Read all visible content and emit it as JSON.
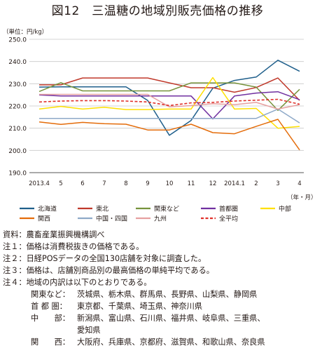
{
  "title": "図12　三温糖の地域別販売価格の推移",
  "chart_data": {
    "type": "line",
    "unit_label": "（単位：円/kg）",
    "xunit_label": "（年・月）",
    "categories": [
      "2013.4",
      "5",
      "6",
      "7",
      "8",
      "9",
      "10",
      "11",
      "12",
      "2014.1",
      "2",
      "3",
      "4"
    ],
    "y_ticks": [
      "190.0",
      "200.0",
      "210.0",
      "220.0",
      "230.0",
      "240.0",
      "250.0"
    ],
    "ylim": [
      190,
      250
    ],
    "grid": true,
    "legend_position": "bottom",
    "series": [
      {
        "name": "北海道",
        "color": "#1f5f8b",
        "dash": false,
        "values": [
          228.5,
          228.6,
          228.6,
          228.6,
          228.6,
          222.5,
          206.8,
          213.5,
          228.0,
          231.5,
          233.0,
          240.6,
          235.6
        ]
      },
      {
        "name": "東北",
        "color": "#c0392b",
        "dash": false,
        "values": [
          229.5,
          229.5,
          232.6,
          232.6,
          232.6,
          232.6,
          230.4,
          228.2,
          228.2,
          226.2,
          228.3,
          232.6,
          222.5
        ]
      },
      {
        "name": "関東など",
        "color": "#77933c",
        "dash": false,
        "values": [
          226.5,
          230.5,
          226.8,
          226.8,
          226.8,
          226.8,
          226.8,
          230.4,
          230.4,
          230.4,
          228.5,
          218.0,
          227.5
        ]
      },
      {
        "name": "首都圏",
        "color": "#7030a0",
        "dash": false,
        "values": [
          225.0,
          224.5,
          224.5,
          224.5,
          224.5,
          224.5,
          224.5,
          224.5,
          214.2,
          224.5,
          225.8,
          226.4,
          222.8
        ]
      },
      {
        "name": "中部",
        "color": "#ffe000",
        "dash": false,
        "values": [
          218.6,
          219.8,
          218.6,
          219.4,
          218.4,
          218.4,
          218.6,
          218.6,
          232.8,
          218.6,
          218.9,
          210.0,
          210.8
        ]
      },
      {
        "name": "関西",
        "color": "#e46c0a",
        "dash": false,
        "values": [
          212.8,
          211.7,
          212.6,
          212.0,
          211.8,
          209.2,
          209.2,
          211.8,
          208.0,
          207.5,
          210.8,
          214.0,
          200.2
        ]
      },
      {
        "name": "中国・四国",
        "color": "#8ea9c8",
        "dash": false,
        "values": [
          214.4,
          214.4,
          214.4,
          214.4,
          214.4,
          214.4,
          214.4,
          214.4,
          214.4,
          214.4,
          214.4,
          218.6,
          212.4
        ]
      },
      {
        "name": "九州",
        "color": "#e6a0a0",
        "dash": false,
        "values": [
          225.2,
          225.2,
          225.2,
          225.2,
          225.2,
          225.2,
          219.6,
          220.2,
          221.0,
          220.6,
          221.6,
          218.6,
          220.6
        ]
      },
      {
        "name": "全平均",
        "color": "#e0302a",
        "dash": true,
        "values": [
          221.8,
          222.2,
          222.4,
          222.4,
          222.2,
          221.8,
          220.2,
          221.4,
          221.6,
          222.2,
          222.6,
          223.0,
          220.8
        ]
      }
    ]
  },
  "notes": [
    {
      "label": "資料：",
      "text": "農畜産業振興機構調べ"
    },
    {
      "label": "注１：",
      "text": "価格は消費税抜きの価格である。"
    },
    {
      "label": "注２：",
      "text": "日経POSデータの全国130店舗を対象に調査した。"
    },
    {
      "label": "注３：",
      "text": "価格は、店舗別商品別の最高価格の単純平均である。"
    },
    {
      "label": "注４：",
      "text": "地域の内訳は以下のとおりである。"
    }
  ],
  "regions": [
    {
      "label": "関東など：",
      "text": "茨城県、栃木県、群馬県、長野県、山梨県、静岡県"
    },
    {
      "label": "首 都 圏：",
      "text": "東京都、千葉県、埼玉県、神奈川県"
    },
    {
      "label": "中　　部：",
      "text": "新潟県、富山県、石川県、福井県、岐阜県、三重県、"
    },
    {
      "label": "",
      "text": "愛知県"
    },
    {
      "label": "関　　西：",
      "text": "大阪府、兵庫県、京都府、滋賀県、和歌山県、奈良県"
    }
  ]
}
